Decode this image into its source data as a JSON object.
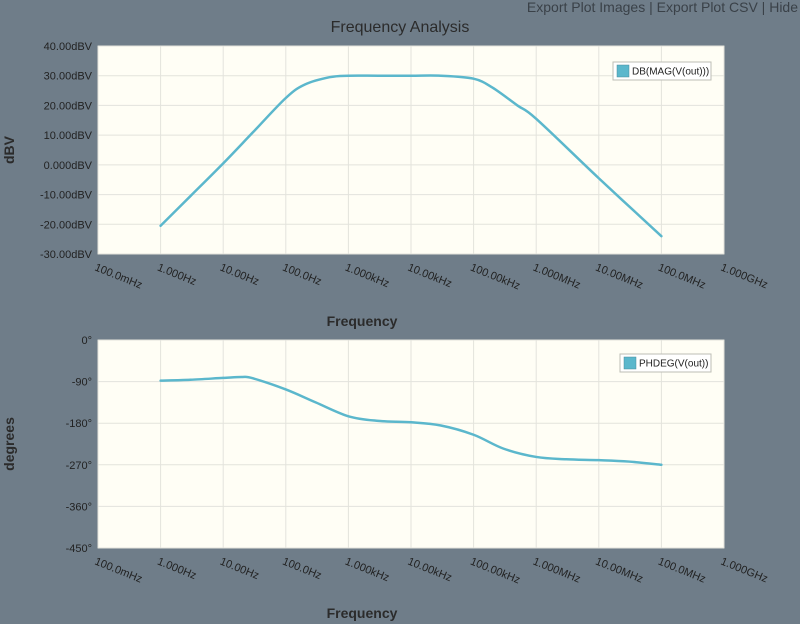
{
  "toolbar": {
    "export_images": "Export Plot Images",
    "export_csv": "Export Plot CSV",
    "hide": "Hide",
    "separator": "|"
  },
  "colors": {
    "background": "#6f7d89",
    "plot_bg": "#fffef5",
    "grid": "#e3e3dc",
    "series": "#5bb7cc"
  },
  "chart_data": [
    {
      "type": "line",
      "title": "Frequency Analysis",
      "xlabel": "Frequency",
      "ylabel": "dBV",
      "x_scale": "log",
      "xlim": [
        0.1,
        1000000000
      ],
      "ylim": [
        -30,
        40
      ],
      "x_tick_values": [
        0.1,
        1,
        10,
        100,
        1000,
        10000,
        100000,
        1000000,
        10000000,
        100000000,
        1000000000
      ],
      "x_tick_labels": [
        "100.0mHz",
        "1.000Hz",
        "10.00Hz",
        "100.0Hz",
        "1.000kHz",
        "10.00kHz",
        "100.00kHz",
        "1.000MHz",
        "10.00MHz",
        "100.0MHz",
        "1.000GHz"
      ],
      "y_tick_values": [
        40,
        30,
        20,
        10,
        0,
        -10,
        -20,
        -30
      ],
      "y_tick_labels": [
        "40.00dBV",
        "30.00dBV",
        "20.00dBV",
        "10.00dBV",
        "0.000dBV",
        "-10.00dBV",
        "-20.00dBV",
        "-30.00dBV"
      ],
      "grid": true,
      "legend_position": "top-right",
      "series": [
        {
          "name": "DB(MAG(V(out)))",
          "x": [
            1,
            3,
            10,
            30,
            100,
            200,
            500,
            1000,
            3000,
            10000,
            30000,
            100000,
            200000,
            500000,
            1000000,
            10000000,
            100000000
          ],
          "y": [
            -20.5,
            -10.5,
            0.5,
            11.0,
            22.5,
            27.0,
            29.5,
            30.0,
            30.0,
            30.0,
            30.0,
            29.0,
            26.0,
            20.0,
            15.5,
            -4.5,
            -24.0
          ]
        }
      ]
    },
    {
      "type": "line",
      "title": "",
      "xlabel": "Frequency",
      "ylabel": "degrees",
      "x_scale": "log",
      "xlim": [
        0.1,
        1000000000
      ],
      "ylim": [
        -450,
        0
      ],
      "x_tick_values": [
        0.1,
        1,
        10,
        100,
        1000,
        10000,
        100000,
        1000000,
        10000000,
        100000000,
        1000000000
      ],
      "x_tick_labels": [
        "100.0mHz",
        "1.000Hz",
        "10.00Hz",
        "100.0Hz",
        "1.000kHz",
        "10.00kHz",
        "100.00kHz",
        "1.000MHz",
        "10.00MHz",
        "100.0MHz",
        "1.000GHz"
      ],
      "y_tick_values": [
        0,
        -90,
        -180,
        -270,
        -360,
        -450
      ],
      "y_tick_labels": [
        "0°",
        "-90°",
        "-180°",
        "-270°",
        "-360°",
        "-450°"
      ],
      "grid": true,
      "legend_position": "top-right",
      "series": [
        {
          "name": "PHDEG(V(out))",
          "x": [
            1,
            3,
            10,
            20,
            30,
            100,
            300,
            1000,
            3000,
            10000,
            30000,
            100000,
            300000,
            1000000,
            3000000,
            10000000,
            30000000,
            100000000
          ],
          "y": [
            -88,
            -86,
            -82,
            -80,
            -83,
            -107,
            -135,
            -165,
            -175,
            -178,
            -185,
            -205,
            -235,
            -253,
            -258,
            -260,
            -263,
            -270
          ]
        }
      ]
    }
  ]
}
